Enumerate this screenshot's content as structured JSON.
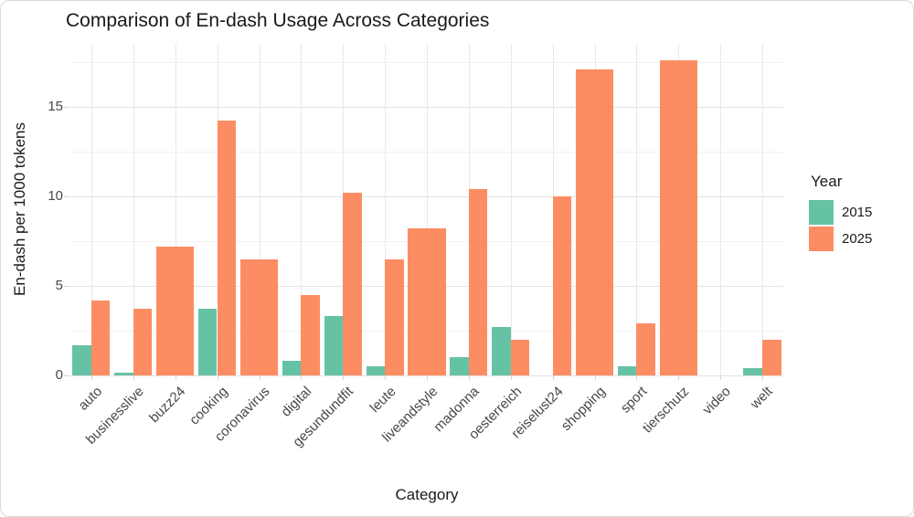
{
  "chart_data": {
    "type": "bar",
    "title": "Comparison of En-dash Usage Across Categories",
    "xlabel": "Category",
    "ylabel": "En-dash per 1000 tokens",
    "legend": {
      "title": "Year",
      "position": "right"
    },
    "categories": [
      "auto",
      "businesslive",
      "buzz24",
      "cooking",
      "coronavirus",
      "digital",
      "gesundundfit",
      "leute",
      "liveandstyle",
      "madonna",
      "oesterreich",
      "reiselust24",
      "shopping",
      "sport",
      "tierschutz",
      "video",
      "welt"
    ],
    "series": [
      {
        "name": "2015",
        "color": "#66C2A5",
        "values": [
          1.7,
          0.15,
          null,
          3.7,
          null,
          0.8,
          3.3,
          0.5,
          null,
          1.0,
          2.7,
          0,
          null,
          0.5,
          null,
          null,
          0.4
        ]
      },
      {
        "name": "2025",
        "color": "#FC8D62",
        "values": [
          4.2,
          3.7,
          7.2,
          14.2,
          6.5,
          4.5,
          10.2,
          6.5,
          8.2,
          10.4,
          2.0,
          10.0,
          17.1,
          2.9,
          17.6,
          null,
          2.0
        ]
      }
    ],
    "y_axis": {
      "ticks": [
        0,
        5,
        10,
        15
      ],
      "minor_ticks": [
        2.5,
        7.5,
        12.5,
        17.5
      ],
      "range": [
        0,
        18.5
      ],
      "grid": true
    },
    "notes": "single-series categories drawn full group width; video has no bars"
  }
}
